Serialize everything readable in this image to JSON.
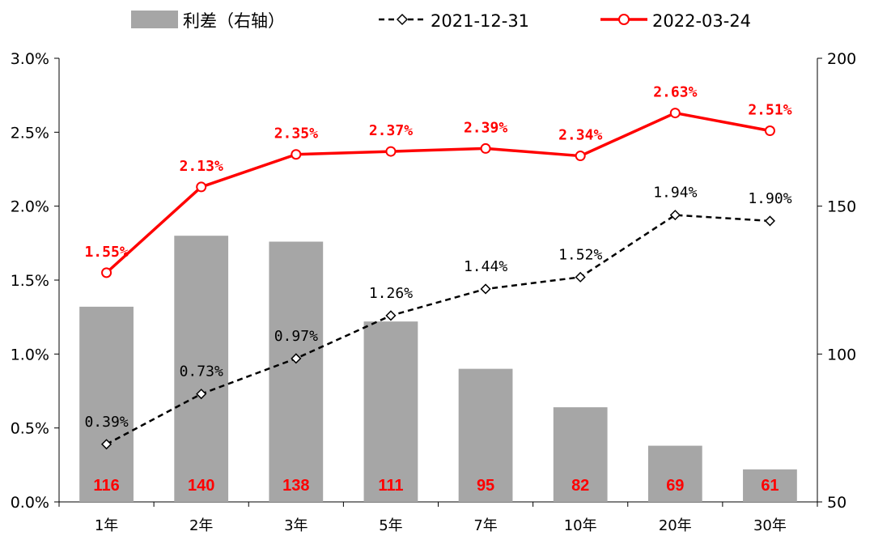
{
  "chart_data": {
    "type": "bar+line",
    "categories": [
      "1年",
      "2年",
      "3年",
      "5年",
      "7年",
      "10年",
      "20年",
      "30年"
    ],
    "bars": {
      "name": "利差（右轴）",
      "axis": "right",
      "values": [
        116,
        140,
        138,
        111,
        95,
        82,
        69,
        61
      ],
      "labels": [
        "116",
        "140",
        "138",
        "111",
        "95",
        "82",
        "69",
        "61"
      ],
      "color": "#a6a6a6"
    },
    "series": [
      {
        "name": "2021-12-31",
        "axis": "left",
        "values": [
          0.39,
          0.73,
          0.97,
          1.26,
          1.44,
          1.52,
          1.94,
          1.9
        ],
        "labels": [
          "0.39%",
          "0.73%",
          "0.97%",
          "1.26%",
          "1.44%",
          "1.52%",
          "1.94%",
          "1.90%"
        ],
        "color": "#000000",
        "line_style": "dashed",
        "marker": "diamond"
      },
      {
        "name": "2022-03-24",
        "axis": "left",
        "values": [
          1.55,
          2.13,
          2.35,
          2.37,
          2.39,
          2.34,
          2.63,
          2.51
        ],
        "labels": [
          "1.55%",
          "2.13%",
          "2.35%",
          "2.37%",
          "2.39%",
          "2.34%",
          "2.63%",
          "2.51%"
        ],
        "color": "#ff0000",
        "line_style": "solid",
        "marker": "circle"
      }
    ],
    "y_left": {
      "lim": [
        0,
        3.0
      ],
      "ticks": [
        0,
        0.5,
        1.0,
        1.5,
        2.0,
        2.5,
        3.0
      ],
      "tick_labels": [
        "0.0%",
        "0.5%",
        "1.0%",
        "1.5%",
        "2.0%",
        "2.5%",
        "3.0%"
      ]
    },
    "y_right": {
      "lim": [
        50,
        200
      ],
      "ticks": [
        50,
        100,
        150,
        200
      ],
      "tick_labels": [
        "50",
        "100",
        "150",
        "200"
      ]
    },
    "legend_position": "top",
    "grid": false
  }
}
